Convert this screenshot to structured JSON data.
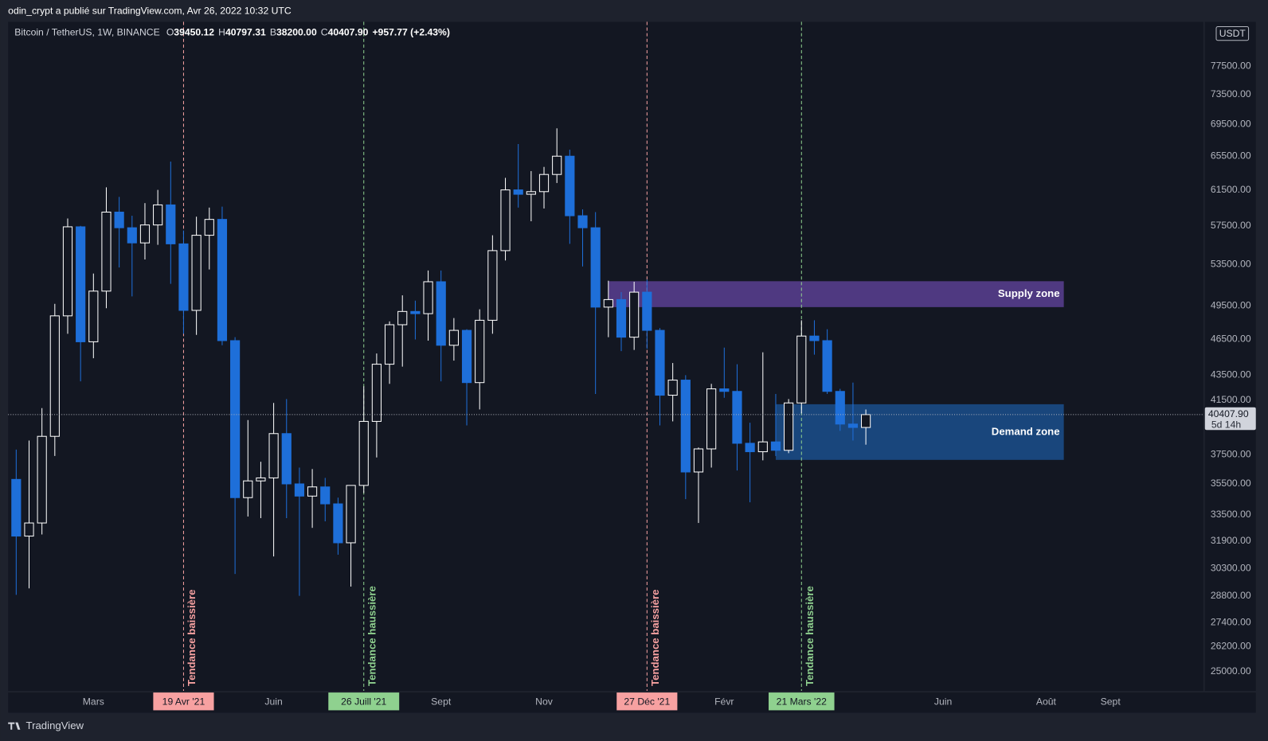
{
  "header": "odin_crypt a publié sur TradingView.com, Avr 26, 2022 10:32 UTC",
  "footer": "TradingView",
  "chart_data": {
    "type": "candlestick",
    "log_scale": true,
    "grid": false,
    "currency": "USDT",
    "legend": {
      "symbol": "Bitcoin / TetherUS, 1W, BINANCE",
      "fields": [
        {
          "key": "O",
          "label": "39450.12"
        },
        {
          "key": "H",
          "label": "40797.31"
        },
        {
          "key": "B",
          "label": "38200.00"
        },
        {
          "key": "C",
          "label": "40407.90"
        }
      ],
      "change": "+957.77 (+2.43%)"
    },
    "price_label": "40407.90",
    "countdown": "5d 14h",
    "up_color": "#ffffff",
    "down_color": "#1e6fd9",
    "ylim": [
      24110,
      84200
    ],
    "yticks": [
      {
        "value": 25000,
        "label": "25000.00"
      },
      {
        "value": 26200,
        "label": "26200.00"
      },
      {
        "value": 27400,
        "label": "27400.00"
      },
      {
        "value": 28800,
        "label": "28800.00"
      },
      {
        "value": 30300,
        "label": "30300.00"
      },
      {
        "value": 31900,
        "label": "31900.00"
      },
      {
        "value": 33500,
        "label": "33500.00"
      },
      {
        "value": 35500,
        "label": "35500.00"
      },
      {
        "value": 37500,
        "label": "37500.00"
      },
      {
        "value": 41500,
        "label": "41500.00"
      },
      {
        "value": 43500,
        "label": "43500.00"
      },
      {
        "value": 46500,
        "label": "46500.00"
      },
      {
        "value": 49500,
        "label": "49500.00"
      },
      {
        "value": 53500,
        "label": "53500.00"
      },
      {
        "value": 57500,
        "label": "57500.00"
      },
      {
        "value": 61500,
        "label": "61500.00"
      },
      {
        "value": 65500,
        "label": "65500.00"
      },
      {
        "value": 69500,
        "label": "69500.00"
      },
      {
        "value": 73500,
        "label": "73500.00"
      },
      {
        "value": 77500,
        "label": "77500.00"
      }
    ],
    "categories": [
      null,
      null,
      null,
      null,
      null,
      null,
      "Mars",
      null,
      null,
      null,
      null,
      null,
      null,
      "19 Avr '21",
      null,
      null,
      null,
      null,
      null,
      null,
      "Juin",
      null,
      null,
      null,
      null,
      null,
      null,
      "26 Juill '21",
      null,
      null,
      null,
      null,
      null,
      "Sept",
      null,
      null,
      null,
      null,
      null,
      null,
      null,
      "Nov",
      null,
      null,
      null,
      null,
      null,
      null,
      null,
      "27 Déc '21",
      null,
      null,
      null,
      null,
      null,
      "Févr",
      null,
      null,
      null,
      null,
      null,
      "21 Mars '22",
      null,
      null,
      null,
      null,
      null,
      null,
      null,
      null,
      null,
      null,
      "Juin",
      null,
      null,
      null,
      null,
      null,
      null,
      null,
      "Août",
      null,
      null,
      null,
      null,
      "Sept",
      null,
      null,
      null,
      null,
      null,
      null
    ],
    "open": [
      35800,
      32200,
      33000,
      38800,
      48600,
      57400,
      46300,
      50900,
      59000,
      57300,
      55700,
      57600,
      59800,
      55600,
      49100,
      56500,
      58200,
      46400,
      34600,
      35700,
      35900,
      39000,
      35500,
      34700,
      35300,
      34200,
      31800,
      35400,
      39900,
      44400,
      47800,
      49000,
      48800,
      51800,
      46000,
      47300,
      42900,
      48200,
      54900,
      61500,
      61000,
      61300,
      63300,
      65500,
      58600,
      57300,
      49400,
      50100,
      46700,
      50800,
      47300,
      41900,
      43100,
      36300,
      37900,
      42400,
      42200,
      38300,
      37700,
      38400,
      37800,
      41300,
      46800,
      46400,
      42200,
      39700,
      39450.12,
      null,
      null,
      null,
      null,
      null,
      null,
      null,
      null,
      null,
      null,
      null,
      null,
      null,
      null,
      null,
      null,
      null,
      null,
      null,
      null,
      null,
      null,
      null,
      null,
      null
    ],
    "high": [
      37850,
      38500,
      40900,
      49700,
      58300,
      57500,
      52600,
      61800,
      60700,
      58600,
      60000,
      61500,
      64850,
      57000,
      58500,
      59500,
      59600,
      46700,
      40000,
      37000,
      41300,
      41600,
      36600,
      36500,
      35900,
      34600,
      35400,
      42600,
      45300,
      48100,
      50500,
      50000,
      52900,
      52900,
      48400,
      47400,
      49200,
      56500,
      62900,
      67000,
      63700,
      64200,
      69000,
      66300,
      59300,
      59000,
      51900,
      50800,
      51800,
      52000,
      47500,
      44500,
      43500,
      38000,
      42800,
      45800,
      44400,
      39800,
      45400,
      42000,
      41600,
      48200,
      48200,
      47400,
      42400,
      42900,
      40797.31,
      null,
      null,
      null,
      null,
      null,
      null,
      null,
      null,
      null,
      null,
      null,
      null,
      null,
      null,
      null,
      null,
      null,
      null,
      null,
      null,
      null,
      null,
      null,
      null,
      null
    ],
    "low": [
      28850,
      29200,
      32300,
      37400,
      47000,
      43000,
      44900,
      49300,
      53200,
      50400,
      54000,
      55500,
      51600,
      47000,
      46900,
      53000,
      46000,
      30000,
      33400,
      33300,
      31000,
      33300,
      28800,
      32700,
      33100,
      31100,
      29300,
      34900,
      37300,
      42800,
      44200,
      46500,
      46400,
      43000,
      44700,
      39600,
      40800,
      47000,
      53900,
      59500,
      58000,
      59400,
      62300,
      55600,
      53300,
      42000,
      46700,
      45500,
      45600,
      45700,
      39600,
      39900,
      34500,
      33000,
      36600,
      41700,
      36400,
      34300,
      37100,
      37400,
      37600,
      40500,
      45200,
      42000,
      39200,
      38500,
      38200,
      null,
      null,
      null,
      null,
      null,
      null,
      null,
      null,
      null,
      null,
      null,
      null,
      null,
      null,
      null,
      null,
      null,
      null,
      null,
      null,
      null,
      null,
      null,
      null,
      null
    ],
    "close": [
      32200,
      33000,
      38800,
      48600,
      57400,
      46300,
      50900,
      59000,
      57300,
      55700,
      57600,
      59800,
      55600,
      49100,
      56500,
      58200,
      46400,
      34600,
      35700,
      35900,
      39000,
      35500,
      34700,
      35300,
      34200,
      31800,
      35400,
      39900,
      44400,
      47800,
      49000,
      48800,
      51800,
      46000,
      47300,
      42900,
      48200,
      54900,
      61500,
      61000,
      61300,
      63300,
      65500,
      58600,
      57300,
      49400,
      50100,
      46700,
      50800,
      47300,
      41900,
      43100,
      36300,
      37900,
      42400,
      42200,
      38300,
      37700,
      38400,
      37800,
      41300,
      46800,
      46400,
      42200,
      39700,
      39450,
      40407.9,
      null,
      null,
      null,
      null,
      null,
      null,
      null,
      null,
      null,
      null,
      null,
      null,
      null,
      null,
      null,
      null,
      null,
      null,
      null,
      null,
      null,
      null,
      null,
      null,
      null
    ],
    "vlines": [
      {
        "category": 13,
        "text": "Tendance baissière",
        "color": "#f7a1a1"
      },
      {
        "category": 27,
        "text": "Tendance haussière",
        "color": "#8fd18f"
      },
      {
        "category": 49,
        "text": "Tendance baissière",
        "color": "#f7a1a1"
      },
      {
        "category": 61,
        "text": "Tendance haussière",
        "color": "#8fd18f"
      }
    ],
    "zones": [
      {
        "text": "Supply zone",
        "low": 49400,
        "high": 51850,
        "from": 46,
        "to": 81,
        "color": "#5b3f92"
      },
      {
        "text": "Demand zone",
        "low": 37130,
        "high": 41200,
        "from": 59,
        "to": 81,
        "color": "#1b4f8c"
      }
    ]
  }
}
